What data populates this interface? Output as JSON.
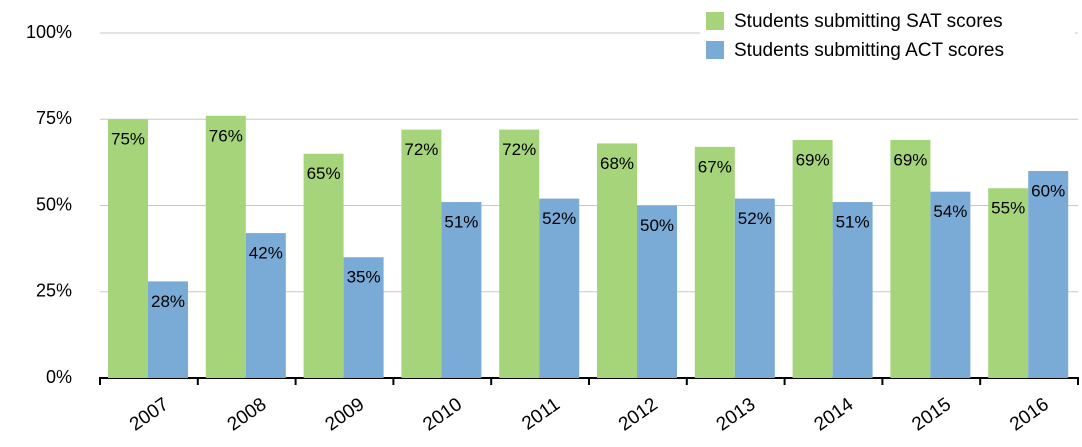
{
  "chart_data": {
    "type": "bar",
    "categories": [
      "2007",
      "2008",
      "2009",
      "2010",
      "2011",
      "2012",
      "2013",
      "2014",
      "2015",
      "2016"
    ],
    "series": [
      {
        "name": "Students submitting SAT scores",
        "color": "#a6d47a",
        "values": [
          75,
          76,
          65,
          72,
          72,
          68,
          67,
          69,
          69,
          55
        ],
        "value_labels": [
          "75%",
          "76%",
          "65%",
          "72%",
          "72%",
          "68%",
          "67%",
          "69%",
          "69%",
          "55%"
        ]
      },
      {
        "name": "Students submitting ACT scores",
        "color": "#7aaad6",
        "values": [
          28,
          42,
          35,
          51,
          52,
          50,
          52,
          51,
          54,
          60
        ],
        "value_labels": [
          "28%",
          "42%",
          "35%",
          "51%",
          "52%",
          "50%",
          "52%",
          "51%",
          "54%",
          "60%"
        ]
      }
    ],
    "ylim": [
      0,
      100
    ],
    "yticks": [
      {
        "value": 0,
        "label": "0%"
      },
      {
        "value": 25,
        "label": "25%"
      },
      {
        "value": 50,
        "label": "50%"
      },
      {
        "value": 75,
        "label": "75%"
      },
      {
        "value": 100,
        "label": "100%"
      }
    ],
    "grid": true,
    "legend": "top-right"
  }
}
